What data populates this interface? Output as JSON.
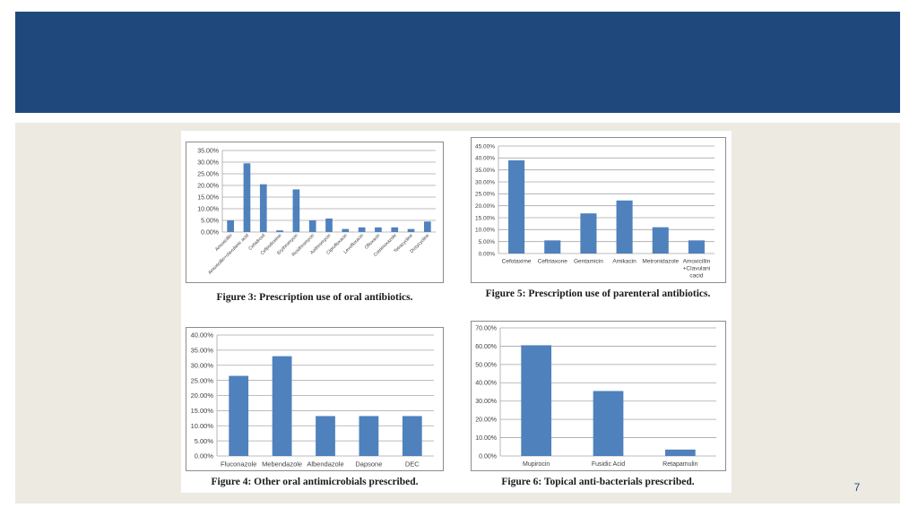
{
  "slide": {
    "page_number": "7",
    "colors": {
      "header": "#1f497d",
      "content_bg": "#eceae1",
      "bar": "#4f81bd",
      "grid": "#a6a6a6",
      "axis_text": "#404040"
    }
  },
  "chart_data": [
    {
      "type": "bar",
      "caption": "Figure 3: Prescription use of oral antibiotics.",
      "categories": [
        "Amoxicillin",
        "Amoxicillin+clavulanic acid",
        "Cefadroxil",
        "Cefpodoxime",
        "Erythromycin",
        "Roxithromycin",
        "Azithromycin",
        "Ciprofloxacin",
        "Levofloxacin",
        "Ofloxacin",
        "Cotrimoxazole",
        "Tetracycline",
        "Doxycycline"
      ],
      "values": [
        5.0,
        29.5,
        20.5,
        0.7,
        18.3,
        5.0,
        5.8,
        1.3,
        2.0,
        2.0,
        2.0,
        1.3,
        4.5
      ],
      "ylim": [
        0,
        35
      ],
      "yticks": [
        "0.00%",
        "5.00%",
        "10.00%",
        "15.00%",
        "20.00%",
        "25.00%",
        "30.00%",
        "35.00%"
      ],
      "grid": true,
      "rotated_labels": true
    },
    {
      "type": "bar",
      "caption": "Figure 5: Prescription use of parenteral antibiotics.",
      "categories": [
        "Cefotaxime",
        "Ceftriaxone",
        "Gentamicin",
        "Amikacin",
        "Metronidazole",
        "Amoxicillin +Clavulanic acid"
      ],
      "category_lines": [
        [
          "Cefotaxime"
        ],
        [
          "Ceftriaxone"
        ],
        [
          "Gentamicin"
        ],
        [
          "Amikacin"
        ],
        [
          "Metronidazole"
        ],
        [
          "Amoxicillin",
          "+Clavulani",
          "cacid"
        ]
      ],
      "values": [
        39.0,
        5.5,
        16.8,
        22.2,
        11.0,
        5.5
      ],
      "ylim": [
        0,
        45
      ],
      "yticks": [
        "0.00%",
        "5.00%",
        "10.00%",
        "15.00%",
        "20.00%",
        "25.00%",
        "30.00%",
        "35.00%",
        "40.00%",
        "45.00%"
      ],
      "grid": true,
      "rotated_labels": false
    },
    {
      "type": "bar",
      "caption": "Figure 4: Other oral antimicrobials prescribed.",
      "categories": [
        "Fluconazole",
        "Mebendazole",
        "Albendazole",
        "Dapsone",
        "DEC"
      ],
      "values": [
        26.5,
        33.0,
        13.2,
        13.2,
        13.2
      ],
      "ylim": [
        0,
        40
      ],
      "yticks": [
        "0.00%",
        "5.00%",
        "10.00%",
        "15.00%",
        "20.00%",
        "25.00%",
        "30.00%",
        "35.00%",
        "40.00%"
      ],
      "grid": true,
      "rotated_labels": false
    },
    {
      "type": "bar",
      "caption": "Figure 6: Topical anti-bacterials prescribed.",
      "categories": [
        "Mupirocin",
        "Fusidic Acid",
        "Retapamulin"
      ],
      "values": [
        60.5,
        35.5,
        3.5
      ],
      "ylim": [
        0,
        70
      ],
      "yticks": [
        "0.00%",
        "10.00%",
        "20.00%",
        "30.00%",
        "40.00%",
        "50.00%",
        "60.00%",
        "70.00%"
      ],
      "grid": true,
      "rotated_labels": false
    }
  ]
}
